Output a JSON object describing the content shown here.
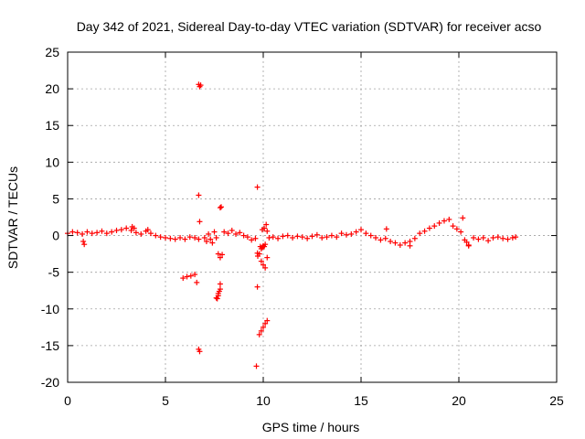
{
  "chart_data": {
    "type": "scatter",
    "title": "Day 342 of 2021, Sidereal Day-to-day VTEC variation (SDTVAR) for receiver acso",
    "xlabel": "GPS time / hours",
    "ylabel": "SDTVAR / TECUs",
    "xlim": [
      0,
      25
    ],
    "ylim": [
      -20,
      25
    ],
    "xticks": [
      0,
      5,
      10,
      15,
      20,
      25
    ],
    "yticks": [
      -20,
      -15,
      -10,
      -5,
      0,
      5,
      10,
      15,
      20,
      25
    ],
    "grid": true,
    "marker": "plus",
    "color": "#ff0000",
    "series": [
      {
        "name": "SDTVAR",
        "x": [
          0.0,
          0.25,
          0.5,
          0.75,
          1.0,
          1.25,
          1.5,
          1.75,
          2.0,
          2.25,
          2.5,
          2.75,
          3.0,
          3.25,
          3.5,
          3.75,
          4.0,
          4.25,
          4.5,
          4.75,
          5.0,
          5.25,
          5.5,
          5.75,
          6.0,
          6.25,
          6.5,
          6.7,
          0.8,
          0.85,
          3.3,
          3.4,
          4.1,
          5.9,
          6.1,
          6.3,
          6.5,
          6.6,
          6.7,
          6.75,
          6.8,
          6.7,
          6.75,
          6.7,
          6.75,
          7.0,
          7.1,
          7.2,
          7.3,
          7.4,
          7.5,
          7.6,
          7.7,
          7.8,
          7.9,
          7.6,
          7.7,
          7.8,
          7.7,
          7.8,
          7.65,
          7.75,
          7.8,
          7.85,
          8.0,
          8.2,
          8.4,
          8.6,
          8.8,
          9.0,
          9.2,
          9.4,
          9.6,
          9.7,
          9.65,
          9.7,
          9.8,
          9.9,
          10.0,
          10.1,
          10.2,
          9.8,
          9.9,
          10.0,
          10.1,
          10.2,
          9.85,
          9.9,
          9.95,
          10.0,
          10.05,
          10.1,
          9.7,
          9.72,
          9.95,
          10.05,
          10.15,
          10.2,
          10.3,
          10.5,
          10.75,
          11.0,
          11.25,
          11.5,
          11.75,
          12.0,
          12.25,
          12.5,
          12.75,
          13.0,
          13.25,
          13.5,
          13.75,
          14.0,
          14.25,
          14.5,
          14.75,
          15.0,
          15.25,
          15.5,
          15.75,
          16.0,
          16.25,
          16.5,
          16.75,
          17.0,
          17.25,
          17.5,
          17.75,
          18.0,
          18.25,
          18.5,
          18.75,
          19.0,
          19.25,
          19.5,
          19.7,
          19.9,
          20.1,
          20.3,
          20.5,
          20.75,
          21.0,
          21.25,
          21.5,
          21.75,
          22.0,
          22.25,
          22.5,
          22.75,
          22.9,
          16.3,
          17.5,
          20.2,
          20.4,
          20.5
        ],
        "y": [
          0.3,
          0.5,
          0.4,
          0.2,
          0.5,
          0.3,
          0.4,
          0.6,
          0.3,
          0.5,
          0.7,
          0.8,
          1.0,
          0.7,
          0.4,
          0.2,
          0.6,
          0.3,
          0.0,
          -0.2,
          -0.3,
          -0.4,
          -0.5,
          -0.3,
          -0.5,
          -0.2,
          -0.3,
          -0.5,
          -0.8,
          -1.2,
          1.2,
          1.0,
          0.8,
          -5.8,
          -5.6,
          -5.5,
          -5.3,
          -6.4,
          20.6,
          20.3,
          20.5,
          5.5,
          1.9,
          -15.5,
          -15.8,
          -0.3,
          -0.8,
          0.2,
          -0.5,
          -1.0,
          0.5,
          -0.3,
          -2.5,
          -3.0,
          -2.6,
          -8.5,
          -7.9,
          -7.3,
          -8.2,
          -6.6,
          -8.6,
          -7.6,
          3.8,
          3.9,
          0.5,
          0.3,
          0.7,
          0.2,
          0.4,
          0.0,
          -0.2,
          -0.6,
          -0.4,
          6.6,
          -17.8,
          -7.0,
          -2.5,
          -3.5,
          -4.0,
          -4.4,
          -3.0,
          -13.5,
          -13.0,
          -12.5,
          -12.0,
          -11.6,
          -1.5,
          -1.8,
          -1.6,
          -1.4,
          -1.5,
          -1.2,
          -2.4,
          -2.8,
          0.8,
          1.0,
          1.5,
          0.6,
          -0.3,
          -0.2,
          -0.4,
          -0.1,
          0.0,
          -0.3,
          -0.1,
          -0.2,
          -0.4,
          -0.1,
          0.1,
          -0.3,
          -0.2,
          0.0,
          -0.2,
          0.3,
          0.1,
          0.2,
          0.5,
          0.8,
          0.3,
          0.0,
          -0.3,
          -0.6,
          -0.4,
          -0.8,
          -1.0,
          -1.3,
          -1.0,
          -0.8,
          -0.4,
          0.3,
          0.6,
          1.0,
          1.3,
          1.7,
          2.0,
          2.2,
          1.3,
          0.9,
          0.5,
          -0.6,
          -1.4,
          -0.3,
          -0.5,
          -0.3,
          -0.7,
          -0.3,
          -0.2,
          -0.4,
          -0.5,
          -0.3,
          -0.2,
          0.9,
          -1.4,
          2.4,
          -0.9,
          -1.3
        ]
      }
    ]
  }
}
